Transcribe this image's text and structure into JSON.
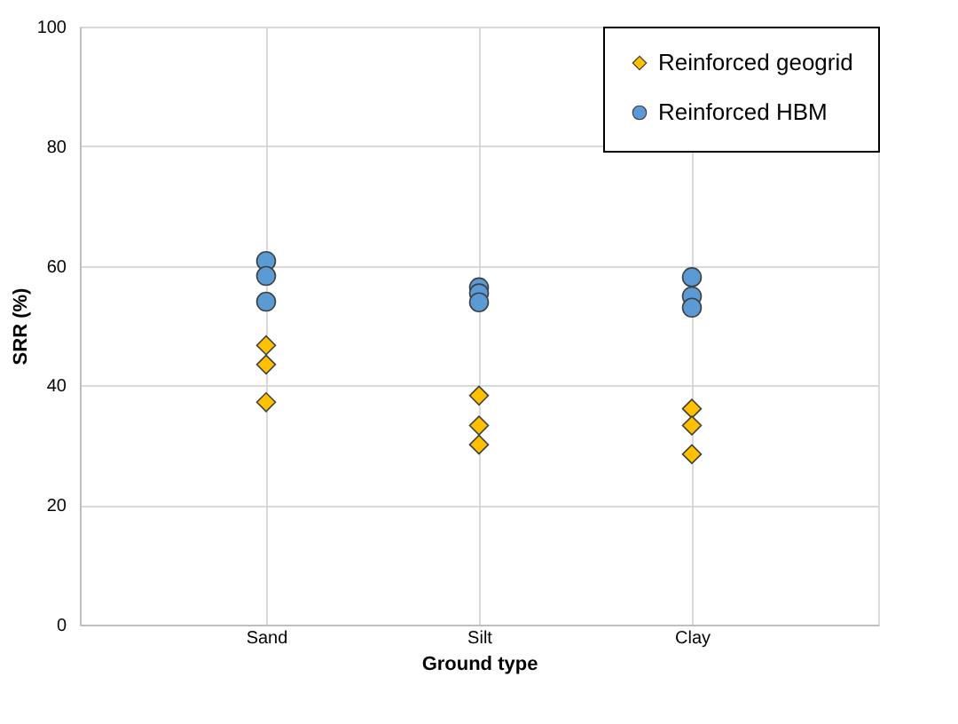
{
  "chart_data": {
    "type": "scatter",
    "xlabel": "Ground type",
    "ylabel": "SRR (%)",
    "categories": [
      "Sand",
      "Silt",
      "Clay"
    ],
    "series": [
      {
        "name": "Reinforced geogrid",
        "color": "#ffc000",
        "marker": "diamond",
        "x": [
          "Sand",
          "Sand",
          "Sand",
          "Silt",
          "Silt",
          "Silt",
          "Clay",
          "Clay",
          "Clay"
        ],
        "values": [
          46.7,
          43.5,
          37.2,
          38.3,
          33.3,
          30.1,
          36.1,
          33.3,
          28.5
        ]
      },
      {
        "name": "Reinforced HBM",
        "color": "#5b9bd5",
        "marker": "circle",
        "x": [
          "Sand",
          "Sand",
          "Sand",
          "Silt",
          "Silt",
          "Silt",
          "Clay",
          "Clay",
          "Clay"
        ],
        "values": [
          60.8,
          58.3,
          54.0,
          56.4,
          55.4,
          53.9,
          58.1,
          54.9,
          53.0
        ]
      }
    ],
    "ylim": [
      0,
      100
    ],
    "yticks": [
      0,
      20,
      40,
      60,
      80,
      100
    ],
    "grid": true,
    "legend": "top right"
  }
}
